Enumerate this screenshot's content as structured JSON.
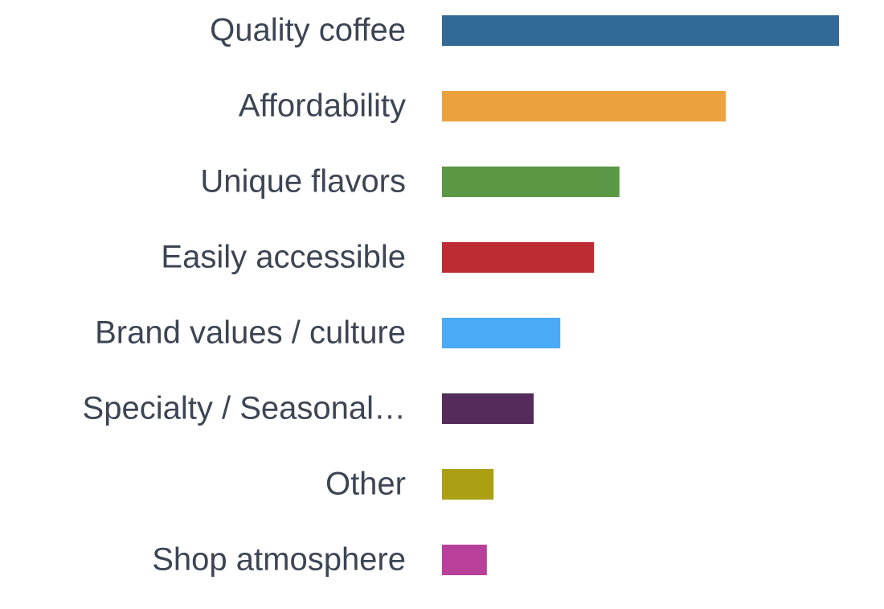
{
  "chart_data": {
    "type": "bar",
    "categories": [
      "Quality coffee",
      "Affordability",
      "Unique flavors",
      "Easily accessible",
      "Brand values / culture",
      "Specialty / Seasonal…",
      "Other",
      "Shop atmosphere"
    ],
    "values": [
      100,
      71.5,
      44.7,
      38.3,
      29.8,
      23.1,
      13.0,
      11.3
    ],
    "colors": [
      "#326a97",
      "#eba23e",
      "#5b9846",
      "#bd2c33",
      "#4aaaf5",
      "#532c5a",
      "#ab9f14",
      "#b8409a"
    ]
  }
}
